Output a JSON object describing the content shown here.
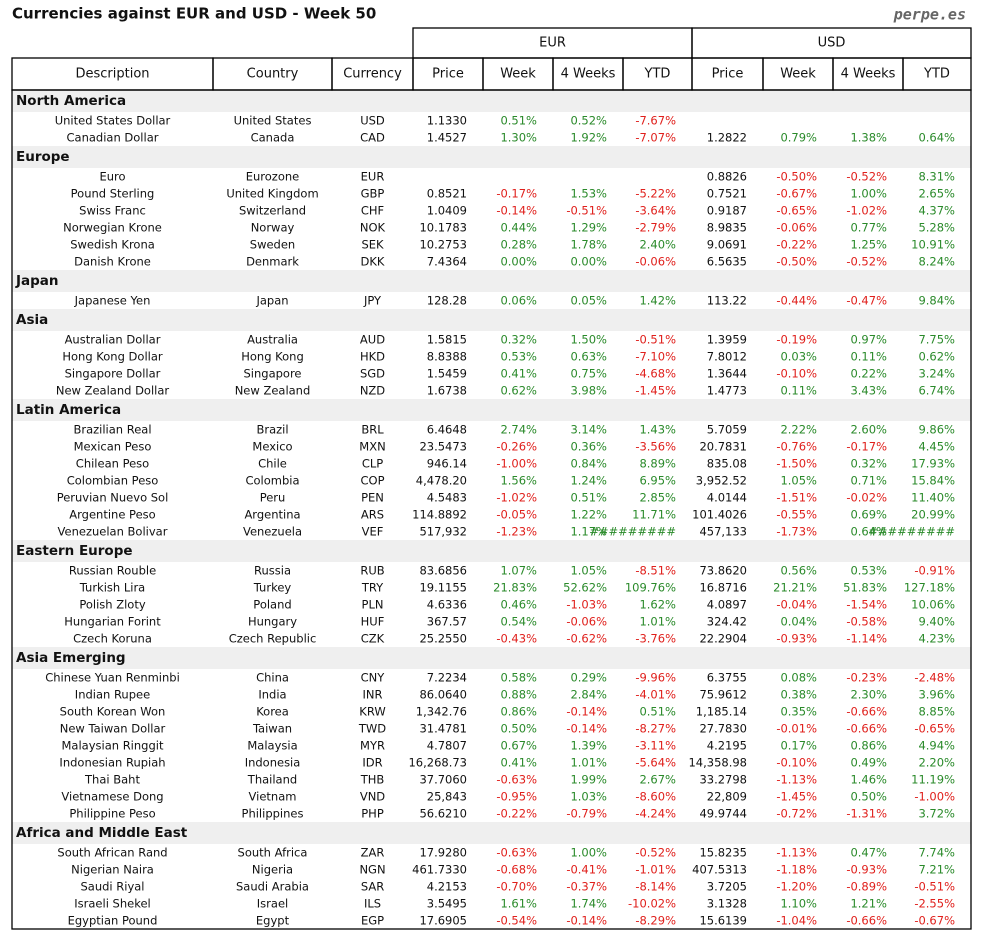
{
  "header": {
    "title": "Currencies against EUR and USD - Week 50",
    "site": "perpe.es"
  },
  "table": {
    "groups": [
      "EUR",
      "USD"
    ],
    "columns": [
      "Description",
      "Country",
      "Currency",
      "Price",
      "Week",
      "4 Weeks",
      "YTD",
      "Price",
      "Week",
      "4 Weeks",
      "YTD"
    ],
    "sections": [
      {
        "name": "North America",
        "rows": [
          [
            "United States Dollar",
            "United States",
            "USD",
            "1.1330",
            "0.51%",
            "0.52%",
            "-7.67%",
            null,
            null,
            null,
            null
          ],
          [
            "Canadian Dollar",
            "Canada",
            "CAD",
            "1.4527",
            "1.30%",
            "1.92%",
            "-7.07%",
            "1.2822",
            "0.79%",
            "1.38%",
            "0.64%"
          ]
        ]
      },
      {
        "name": "Europe",
        "rows": [
          [
            "Euro",
            "Eurozone",
            "EUR",
            null,
            null,
            null,
            null,
            "0.8826",
            "-0.50%",
            "-0.52%",
            "8.31%"
          ],
          [
            "Pound Sterling",
            "United Kingdom",
            "GBP",
            "0.8521",
            "-0.17%",
            "1.53%",
            "-5.22%",
            "0.7521",
            "-0.67%",
            "1.00%",
            "2.65%"
          ],
          [
            "Swiss Franc",
            "Switzerland",
            "CHF",
            "1.0409",
            "-0.14%",
            "-0.51%",
            "-3.64%",
            "0.9187",
            "-0.65%",
            "-1.02%",
            "4.37%"
          ],
          [
            "Norwegian Krone",
            "Norway",
            "NOK",
            "10.1783",
            "0.44%",
            "1.29%",
            "-2.79%",
            "8.9835",
            "-0.06%",
            "0.77%",
            "5.28%"
          ],
          [
            "Swedish Krona",
            "Sweden",
            "SEK",
            "10.2753",
            "0.28%",
            "1.78%",
            "2.40%",
            "9.0691",
            "-0.22%",
            "1.25%",
            "10.91%"
          ],
          [
            "Danish Krone",
            "Denmark",
            "DKK",
            "7.4364",
            "0.00%",
            "0.00%",
            "-0.06%",
            "6.5635",
            "-0.50%",
            "-0.52%",
            "8.24%"
          ]
        ]
      },
      {
        "name": "Japan",
        "rows": [
          [
            "Japanese Yen",
            "Japan",
            "JPY",
            "128.28",
            "0.06%",
            "0.05%",
            "1.42%",
            "113.22",
            "-0.44%",
            "-0.47%",
            "9.84%"
          ]
        ]
      },
      {
        "name": "Asia",
        "rows": [
          [
            "Australian Dollar",
            "Australia",
            "AUD",
            "1.5815",
            "0.32%",
            "1.50%",
            "-0.51%",
            "1.3959",
            "-0.19%",
            "0.97%",
            "7.75%"
          ],
          [
            "Hong Kong Dollar",
            "Hong Kong",
            "HKD",
            "8.8388",
            "0.53%",
            "0.63%",
            "-7.10%",
            "7.8012",
            "0.03%",
            "0.11%",
            "0.62%"
          ],
          [
            "Singapore Dollar",
            "Singapore",
            "SGD",
            "1.5459",
            "0.41%",
            "0.75%",
            "-4.68%",
            "1.3644",
            "-0.10%",
            "0.22%",
            "3.24%"
          ],
          [
            "New Zealand Dollar",
            "New Zealand",
            "NZD",
            "1.6738",
            "0.62%",
            "3.98%",
            "-1.45%",
            "1.4773",
            "0.11%",
            "3.43%",
            "6.74%"
          ]
        ]
      },
      {
        "name": "Latin America",
        "rows": [
          [
            "Brazilian Real",
            "Brazil",
            "BRL",
            "6.4648",
            "2.74%",
            "3.14%",
            "1.43%",
            "5.7059",
            "2.22%",
            "2.60%",
            "9.86%"
          ],
          [
            "Mexican Peso",
            "Mexico",
            "MXN",
            "23.5473",
            "-0.26%",
            "0.36%",
            "-3.56%",
            "20.7831",
            "-0.76%",
            "-0.17%",
            "4.45%"
          ],
          [
            "Chilean Peso",
            "Chile",
            "CLP",
            "946.14",
            "-1.00%",
            "0.84%",
            "8.89%",
            "835.08",
            "-1.50%",
            "0.32%",
            "17.93%"
          ],
          [
            "Colombian Peso",
            "Colombia",
            "COP",
            "4,478.20",
            "1.56%",
            "1.24%",
            "6.95%",
            "3,952.52",
            "1.05%",
            "0.71%",
            "15.84%"
          ],
          [
            "Peruvian Nuevo Sol",
            "Peru",
            "PEN",
            "4.5483",
            "-1.02%",
            "0.51%",
            "2.85%",
            "4.0144",
            "-1.51%",
            "-0.02%",
            "11.40%"
          ],
          [
            "Argentine Peso",
            "Argentina",
            "ARS",
            "114.8892",
            "-0.05%",
            "1.22%",
            "11.71%",
            "101.4026",
            "-0.55%",
            "0.69%",
            "20.99%"
          ],
          [
            "Venezuelan Bolivar",
            "Venezuela",
            "VEF",
            "517,932",
            "-1.23%",
            "1.17%",
            "#########",
            "457,133",
            "-1.73%",
            "0.64%",
            "#########"
          ]
        ]
      },
      {
        "name": "Eastern Europe",
        "rows": [
          [
            "Russian Rouble",
            "Russia",
            "RUB",
            "83.6856",
            "1.07%",
            "1.05%",
            "-8.51%",
            "73.8620",
            "0.56%",
            "0.53%",
            "-0.91%"
          ],
          [
            "Turkish Lira",
            "Turkey",
            "TRY",
            "19.1155",
            "21.83%",
            "52.62%",
            "109.76%",
            "16.8716",
            "21.21%",
            "51.83%",
            "127.18%"
          ],
          [
            "Polish Zloty",
            "Poland",
            "PLN",
            "4.6336",
            "0.46%",
            "-1.03%",
            "1.62%",
            "4.0897",
            "-0.04%",
            "-1.54%",
            "10.06%"
          ],
          [
            "Hungarian Forint",
            "Hungary",
            "HUF",
            "367.57",
            "0.54%",
            "-0.06%",
            "1.01%",
            "324.42",
            "0.04%",
            "-0.58%",
            "9.40%"
          ],
          [
            "Czech Koruna",
            "Czech Republic",
            "CZK",
            "25.2550",
            "-0.43%",
            "-0.62%",
            "-3.76%",
            "22.2904",
            "-0.93%",
            "-1.14%",
            "4.23%"
          ]
        ]
      },
      {
        "name": "Asia Emerging",
        "rows": [
          [
            "Chinese Yuan Renminbi",
            "China",
            "CNY",
            "7.2234",
            "0.58%",
            "0.29%",
            "-9.96%",
            "6.3755",
            "0.08%",
            "-0.23%",
            "-2.48%"
          ],
          [
            "Indian Rupee",
            "India",
            "INR",
            "86.0640",
            "0.88%",
            "2.84%",
            "-4.01%",
            "75.9612",
            "0.38%",
            "2.30%",
            "3.96%"
          ],
          [
            "South Korean Won",
            "Korea",
            "KRW",
            "1,342.76",
            "0.86%",
            "-0.14%",
            "0.51%",
            "1,185.14",
            "0.35%",
            "-0.66%",
            "8.85%"
          ],
          [
            "New Taiwan Dollar",
            "Taiwan",
            "TWD",
            "31.4781",
            "0.50%",
            "-0.14%",
            "-8.27%",
            "27.7830",
            "-0.01%",
            "-0.66%",
            "-0.65%"
          ],
          [
            "Malaysian Ringgit",
            "Malaysia",
            "MYR",
            "4.7807",
            "0.67%",
            "1.39%",
            "-3.11%",
            "4.2195",
            "0.17%",
            "0.86%",
            "4.94%"
          ],
          [
            "Indonesian Rupiah",
            "Indonesia",
            "IDR",
            "16,268.73",
            "0.41%",
            "1.01%",
            "-5.64%",
            "14,358.98",
            "-0.10%",
            "0.49%",
            "2.20%"
          ],
          [
            "Thai Baht",
            "Thailand",
            "THB",
            "37.7060",
            "-0.63%",
            "1.99%",
            "2.67%",
            "33.2798",
            "-1.13%",
            "1.46%",
            "11.19%"
          ],
          [
            "Vietnamese Dong",
            "Vietnam",
            "VND",
            "25,843",
            "-0.95%",
            "1.03%",
            "-8.60%",
            "22,809",
            "-1.45%",
            "0.50%",
            "-1.00%"
          ],
          [
            "Philippine Peso",
            "Philippines",
            "PHP",
            "56.6210",
            "-0.22%",
            "-0.79%",
            "-4.24%",
            "49.9744",
            "-0.72%",
            "-1.31%",
            "3.72%"
          ]
        ]
      },
      {
        "name": "Africa and Middle East",
        "rows": [
          [
            "South African Rand",
            "South Africa",
            "ZAR",
            "17.9280",
            "-0.63%",
            "1.00%",
            "-0.52%",
            "15.8235",
            "-1.13%",
            "0.47%",
            "7.74%"
          ],
          [
            "Nigerian Naira",
            "Nigeria",
            "NGN",
            "461.7330",
            "-0.68%",
            "-0.41%",
            "-1.01%",
            "407.5313",
            "-1.18%",
            "-0.93%",
            "7.21%"
          ],
          [
            "Saudi Riyal",
            "Saudi Arabia",
            "SAR",
            "4.2153",
            "-0.70%",
            "-0.37%",
            "-8.14%",
            "3.7205",
            "-1.20%",
            "-0.89%",
            "-0.51%"
          ],
          [
            "Israeli Shekel",
            "Israel",
            "ILS",
            "3.5495",
            "1.61%",
            "1.74%",
            "-10.02%",
            "3.1328",
            "1.10%",
            "1.21%",
            "-2.55%"
          ],
          [
            "Egyptian Pound",
            "Egypt",
            "EGP",
            "17.6905",
            "-0.54%",
            "-0.14%",
            "-8.29%",
            "15.6139",
            "-1.04%",
            "-0.66%",
            "-0.67%"
          ]
        ]
      }
    ]
  }
}
